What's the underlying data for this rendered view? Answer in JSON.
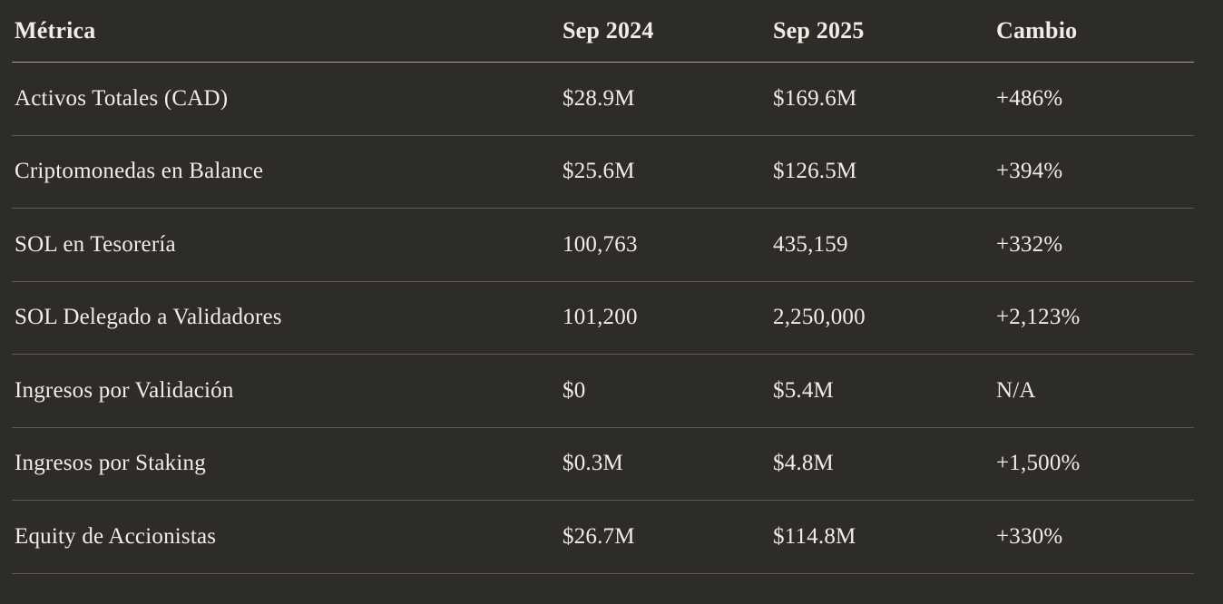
{
  "chart_data": {
    "type": "table",
    "columns": [
      "Métrica",
      "Sep 2024",
      "Sep 2025",
      "Cambio"
    ],
    "rows": [
      [
        "Activos Totales (CAD)",
        "$28.9M",
        "$169.6M",
        "+486%"
      ],
      [
        "Criptomonedas en Balance",
        "$25.6M",
        "$126.5M",
        "+394%"
      ],
      [
        "SOL en Tesorería",
        "100,763",
        "435,159",
        "+332%"
      ],
      [
        "SOL Delegado a Validadores",
        "101,200",
        "2,250,000",
        "+2,123%"
      ],
      [
        "Ingresos por Validación",
        "$0",
        "$5.4M",
        "N/A"
      ],
      [
        "Ingresos por Staking",
        "$0.3M",
        "$4.8M",
        "+1,500%"
      ],
      [
        "Equity de Accionistas",
        "$26.7M",
        "$114.8M",
        "+330%"
      ]
    ],
    "layout": {
      "legend": "none",
      "grid": "horizontal-dividers-only"
    }
  },
  "colors": {
    "background": "#2e2c29",
    "text": "#f2ede4",
    "header_divider": "#a5a29c",
    "row_divider": "#5d5a55"
  }
}
